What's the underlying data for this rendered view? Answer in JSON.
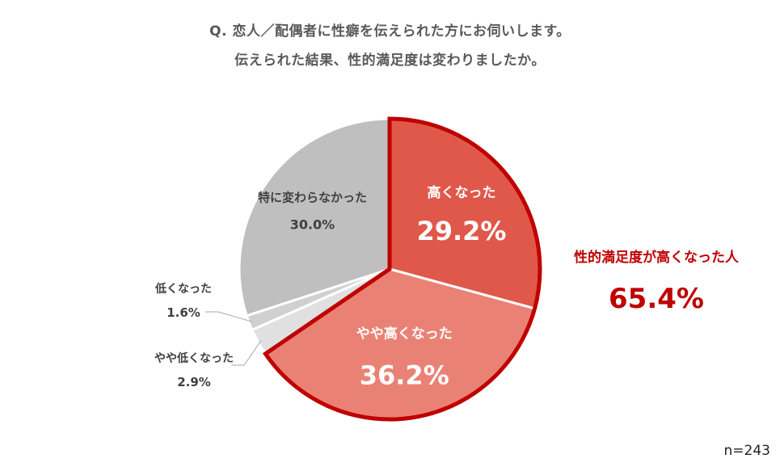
{
  "title_line1": "Q. 恋人／配偶者に性癖を伝えられた方にお伺いします。",
  "title_line2": "伝えられた結果、性的満足度は変わりましたか。",
  "sample_size": "n=243",
  "callout": {
    "label": "性的満足度が高くなった人",
    "value": "65.4%"
  },
  "colors": {
    "high": "#E0584A",
    "slightly_high": "#E98275",
    "slightly_low": "#E0E0E0",
    "low": "#D0D0D0",
    "no_change": "#BFBFBF",
    "highlight": "#C00000",
    "text_gray": "#595959"
  },
  "chart_data": {
    "type": "pie",
    "slices": [
      {
        "label": "高くなった",
        "value": 29.2,
        "value_text": "29.2%"
      },
      {
        "label": "やや高くなった",
        "value": 36.2,
        "value_text": "36.2%"
      },
      {
        "label": "やや低くなった",
        "value": 2.9,
        "value_text": "2.9%"
      },
      {
        "label": "低くなった",
        "value": 1.6,
        "value_text": "1.6%"
      },
      {
        "label": "特に変わらなかった",
        "value": 30.0,
        "value_text": "30.0%"
      }
    ],
    "start": "12 o'clock",
    "direction": "clockwise"
  }
}
